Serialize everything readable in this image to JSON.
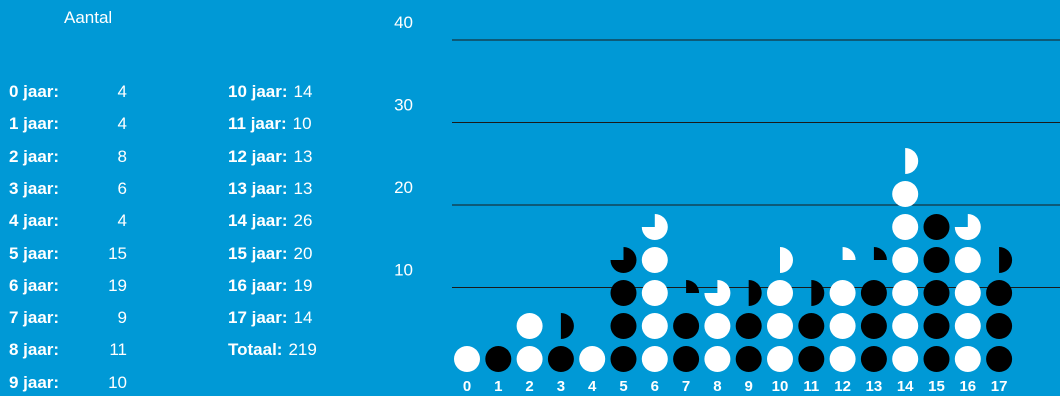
{
  "title": "Aantal",
  "legend_rows_left": [
    {
      "label": "0 jaar:",
      "value": "4"
    },
    {
      "label": "1 jaar:",
      "value": "4"
    },
    {
      "label": "2 jaar:",
      "value": "8"
    },
    {
      "label": "3 jaar:",
      "value": "6"
    },
    {
      "label": "4 jaar:",
      "value": "4"
    },
    {
      "label": "5 jaar:",
      "value": "15"
    },
    {
      "label": "6 jaar:",
      "value": "19"
    },
    {
      "label": "7 jaar:",
      "value": "9"
    },
    {
      "label": "8 jaar:",
      "value": "11"
    },
    {
      "label": "9 jaar:",
      "value": "10"
    }
  ],
  "legend_rows_right": [
    {
      "label": "10 jaar:",
      "value": "14"
    },
    {
      "label": "11 jaar:",
      "value": "10"
    },
    {
      "label": "12 jaar:",
      "value": "13"
    },
    {
      "label": "13 jaar:",
      "value": "13"
    },
    {
      "label": "14 jaar:",
      "value": "26"
    },
    {
      "label": "15 jaar:",
      "value": "20"
    },
    {
      "label": "16 jaar:",
      "value": "19"
    },
    {
      "label": "17 jaar:",
      "value": "14"
    },
    {
      "label": "Totaal:",
      "value": "219"
    }
  ],
  "chart_data": {
    "type": "bar",
    "title": "Aantal",
    "categories": [
      "0",
      "1",
      "2",
      "3",
      "4",
      "5",
      "6",
      "7",
      "8",
      "9",
      "10",
      "11",
      "12",
      "13",
      "14",
      "15",
      "16",
      "17"
    ],
    "values": [
      4,
      4,
      8,
      6,
      4,
      15,
      19,
      9,
      11,
      10,
      14,
      10,
      13,
      13,
      26,
      20,
      19,
      14
    ],
    "total": 219,
    "unit_per_circle": 4,
    "ylim": [
      0,
      50
    ],
    "yticks": [
      10,
      20,
      30,
      40
    ],
    "grid": true,
    "colors": {
      "background": "#0099d6",
      "white": "#ffffff",
      "black": "#000000"
    }
  }
}
